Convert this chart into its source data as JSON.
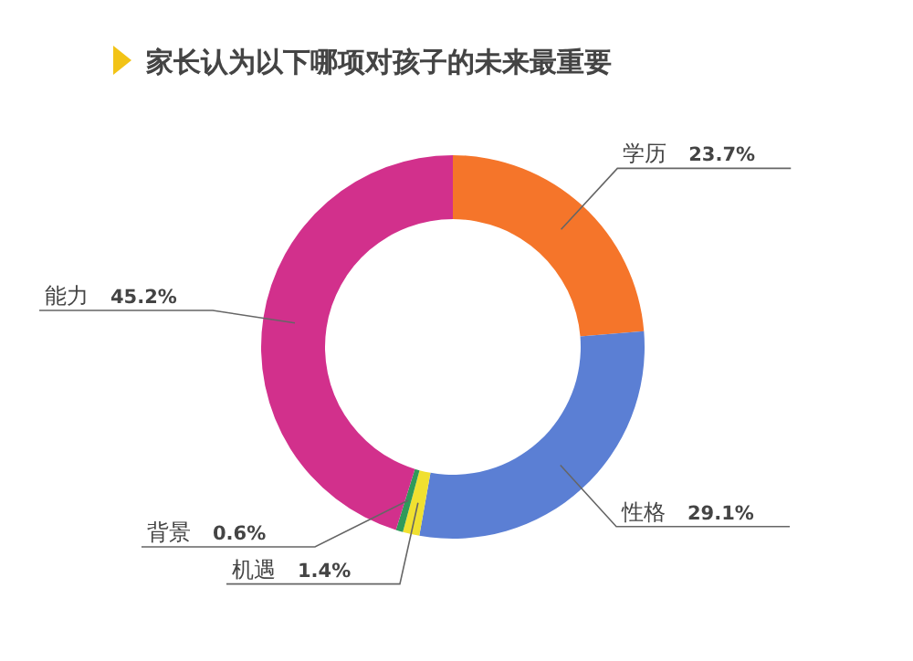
{
  "chart_data": {
    "type": "donut",
    "title": "家长认为以下哪项对孩子的未来最重要",
    "categories": [
      "学历",
      "性格",
      "机遇",
      "背景",
      "能力"
    ],
    "values": [
      23.7,
      29.1,
      1.4,
      0.6,
      45.2
    ],
    "value_labels": [
      "23.7%",
      "29.1%",
      "1.4%",
      "0.6%",
      "45.2%"
    ],
    "colors": [
      "#f5752a",
      "#5b7fd4",
      "#f0e030",
      "#2f9a5a",
      "#d2308c"
    ]
  }
}
